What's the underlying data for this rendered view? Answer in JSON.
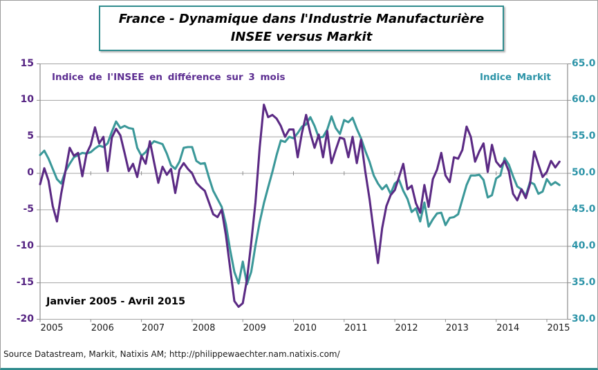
{
  "title": {
    "line1": "France - Dynamique dans l'Industrie Manufacturière",
    "line2": "INSEE versus Markit"
  },
  "annotations": {
    "insee_label": "Indice de l'INSEE en différence sur 3 mois",
    "markit_label": "Indice Markit",
    "period_label": "Janvier 2005 - Avril 2015"
  },
  "footer": {
    "source": "Source Datastream, Markit, Natixis AM; http://philippewaechter.nam.natixis.com/"
  },
  "colors": {
    "insee_line": "#5b2a84",
    "markit_line": "#3b9899",
    "left_axis_text": "#552382",
    "right_axis_text": "#2d94a8",
    "grid": "#a3a3a3",
    "axis": "#8c8c8c",
    "title_border": "#2e8b8d"
  },
  "axes": {
    "left": {
      "labels": [
        "15",
        "10",
        "5",
        "0",
        "-5",
        "-10",
        "-15",
        "-20"
      ],
      "values": [
        15,
        10,
        5,
        0,
        -5,
        -10,
        -15,
        -20
      ]
    },
    "right": {
      "labels": [
        "65.0",
        "60.0",
        "55.0",
        "50.0",
        "45.0",
        "40.0",
        "35.0",
        "30.0"
      ],
      "values": [
        65,
        60,
        55,
        50,
        45,
        40,
        35,
        30
      ]
    },
    "x": {
      "labels": [
        "2005",
        "2006",
        "2007",
        "2008",
        "2009",
        "2010",
        "2011",
        "2012",
        "2013",
        "2014",
        "2015"
      ],
      "months": [
        0,
        12,
        24,
        36,
        48,
        60,
        72,
        84,
        96,
        108,
        120
      ]
    }
  },
  "chart_data": {
    "type": "line",
    "title": "France - Dynamique dans l'Industrie Manufacturière — INSEE versus Markit",
    "x_unit": "month",
    "x_start": "2005-01",
    "x_end": "2015-04",
    "grid": true,
    "left_ylim": [
      -20,
      15
    ],
    "right_ylim": [
      30,
      65
    ],
    "series": [
      {
        "name": "Indice de l'INSEE en différence sur 3 mois",
        "axis": "left",
        "color": "#5b2a84",
        "values": [
          -1.5,
          0.7,
          -1.0,
          -4.5,
          -6.6,
          -2.8,
          0.3,
          3.5,
          2.4,
          2.8,
          -0.4,
          2.7,
          3.9,
          6.3,
          4.1,
          5.0,
          0.3,
          4.9,
          6.1,
          5.2,
          2.8,
          0.3,
          1.3,
          -0.5,
          2.4,
          1.3,
          4.4,
          1.5,
          -1.3,
          0.9,
          -0.2,
          0.6,
          -2.7,
          0.5,
          1.4,
          0.6,
          0.0,
          -1.3,
          -1.9,
          -2.4,
          -4.0,
          -5.6,
          -6.0,
          -5.0,
          -8.5,
          -13.0,
          -17.5,
          -18.3,
          -17.8,
          -14.5,
          -9.5,
          -4.0,
          3.5,
          9.4,
          7.7,
          8.0,
          7.5,
          6.5,
          5.0,
          6.0,
          6.0,
          2.2,
          5.5,
          8.0,
          5.5,
          3.5,
          5.3,
          2.2,
          5.8,
          1.4,
          3.2,
          4.9,
          4.7,
          2.2,
          5.0,
          1.4,
          4.6,
          0.3,
          -3.5,
          -8.0,
          -12.3,
          -7.5,
          -4.5,
          -3.0,
          -2.3,
          -0.5,
          1.3,
          -2.2,
          -1.7,
          -4.1,
          -5.4,
          -1.6,
          -4.6,
          -0.8,
          0.5,
          2.8,
          -0.3,
          -1.2,
          2.2,
          2.0,
          3.2,
          6.4,
          5.0,
          1.6,
          3.0,
          4.1,
          0.2,
          3.9,
          1.6,
          0.9,
          1.7,
          0.3,
          -2.8,
          -3.7,
          -2.2,
          -3.4,
          -1.5,
          3.0,
          1.2,
          -0.5,
          0.2,
          1.7,
          0.8,
          1.6
        ]
      },
      {
        "name": "Indice Markit",
        "axis": "right",
        "color": "#3b9899",
        "values": [
          52.5,
          53.1,
          52.0,
          50.6,
          49.2,
          48.6,
          50.3,
          51.3,
          52.2,
          52.5,
          52.8,
          52.7,
          52.9,
          53.4,
          53.8,
          53.6,
          54.1,
          55.7,
          57.1,
          56.2,
          56.5,
          56.2,
          56.1,
          53.5,
          52.4,
          52.9,
          53.8,
          54.4,
          54.2,
          54.0,
          52.7,
          51.1,
          50.6,
          51.6,
          53.5,
          53.6,
          53.6,
          51.7,
          51.3,
          51.4,
          49.4,
          47.6,
          46.5,
          45.4,
          43.0,
          39.5,
          36.5,
          34.9,
          37.9,
          34.8,
          36.5,
          40.1,
          43.3,
          45.9,
          48.1,
          50.2,
          52.5,
          54.5,
          54.3,
          55.0,
          54.8,
          55.5,
          56.4,
          56.7,
          57.7,
          56.5,
          54.9,
          55.0,
          56.0,
          57.8,
          56.2,
          55.4,
          57.3,
          57.0,
          57.6,
          56.1,
          54.8,
          53.1,
          51.6,
          49.7,
          48.6,
          47.8,
          48.4,
          47.2,
          48.6,
          49.1,
          47.6,
          46.5,
          44.7,
          45.2,
          43.4,
          46.0,
          42.7,
          43.7,
          44.5,
          44.6,
          42.9,
          43.9,
          44.0,
          44.4,
          46.4,
          48.4,
          49.7,
          49.7,
          49.8,
          49.1,
          46.7,
          47.0,
          49.3,
          49.7,
          52.1,
          51.2,
          49.6,
          48.2,
          47.8,
          46.9,
          48.8,
          48.5,
          47.2,
          47.5,
          49.2,
          48.4,
          48.8,
          48.4
        ]
      }
    ]
  }
}
